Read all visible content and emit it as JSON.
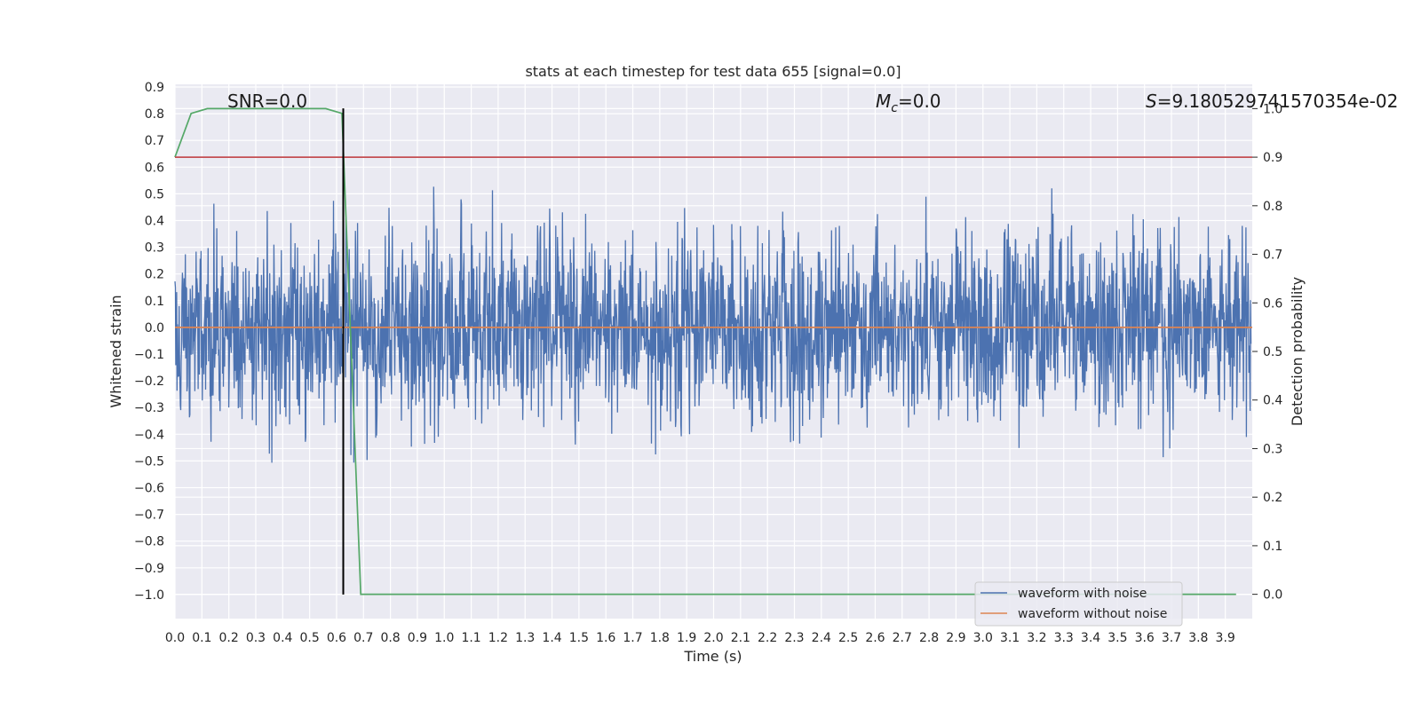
{
  "chart_data": {
    "type": "line",
    "title": "stats at each timestep for test data 655 [signal=0.0]",
    "xlabel": "Time (s)",
    "ylabel": "Whitened strain",
    "y2label": "Detection probability",
    "xlim": [
      0.0,
      4.0
    ],
    "ylim": [
      -1.09,
      0.91
    ],
    "y2lim": [
      -0.05,
      1.05
    ],
    "x_ticks": [
      "0.0",
      "0.1",
      "0.2",
      "0.3",
      "0.4",
      "0.5",
      "0.6",
      "0.7",
      "0.8",
      "0.9",
      "1.0",
      "1.1",
      "1.2",
      "1.3",
      "1.4",
      "1.5",
      "1.6",
      "1.7",
      "1.8",
      "1.9",
      "2.0",
      "2.1",
      "2.2",
      "2.3",
      "2.4",
      "2.5",
      "2.6",
      "2.7",
      "2.8",
      "2.9",
      "3.0",
      "3.1",
      "3.2",
      "3.3",
      "3.4",
      "3.5",
      "3.6",
      "3.7",
      "3.8",
      "3.9"
    ],
    "y_ticks": [
      "0.9",
      "0.8",
      "0.7",
      "0.6",
      "0.5",
      "0.4",
      "0.3",
      "0.2",
      "0.1",
      "0.0",
      "−0.1",
      "−0.2",
      "−0.3",
      "−0.4",
      "−0.5",
      "−0.6",
      "−0.7",
      "−0.8",
      "−0.9",
      "−1.0"
    ],
    "y2_ticks": [
      "1.0",
      "0.9",
      "0.8",
      "0.7",
      "0.6",
      "0.5",
      "0.4",
      "0.3",
      "0.2",
      "0.1",
      "0.0"
    ],
    "grid": true,
    "legend_position": "lower-right",
    "annotations": {
      "snr": "SNR=0.0",
      "mc": "=0.0",
      "mc_symbol": "M",
      "mc_subscript": "c",
      "s": "=9.180529741570354e-02",
      "s_symbol": "S"
    },
    "series": [
      {
        "name": "waveform with noise",
        "axis": "left",
        "color": "#4c72b0",
        "description_range": [
          -1.0,
          0.82
        ],
        "sample_rate": 2048
      },
      {
        "name": "waveform without noise",
        "axis": "left",
        "color": "#dd8452",
        "x": [
          0.0,
          4.0
        ],
        "y": [
          0.0,
          0.0
        ]
      },
      {
        "axis": "right",
        "color": "#55a868",
        "x": [
          0.0,
          0.06,
          0.12,
          0.2,
          0.3,
          0.4,
          0.5,
          0.56,
          0.62,
          0.69,
          1.0,
          1.5,
          2.0,
          2.5,
          3.0,
          3.5,
          3.94
        ],
        "y": [
          0.9,
          0.99,
          1.0,
          1.0,
          1.0,
          1.0,
          1.0,
          1.0,
          0.99,
          0.0,
          0.0,
          0.0,
          0.0,
          0.0,
          0.0,
          0.0,
          0.0
        ]
      },
      {
        "axis": "right",
        "color": "#c44e52",
        "x": [
          0.0,
          4.0
        ],
        "y": [
          0.9,
          0.9
        ]
      },
      {
        "axis": "left",
        "color": "#000000",
        "x": [
          0.625,
          0.625
        ],
        "y": [
          -1.0,
          0.82
        ]
      }
    ]
  }
}
